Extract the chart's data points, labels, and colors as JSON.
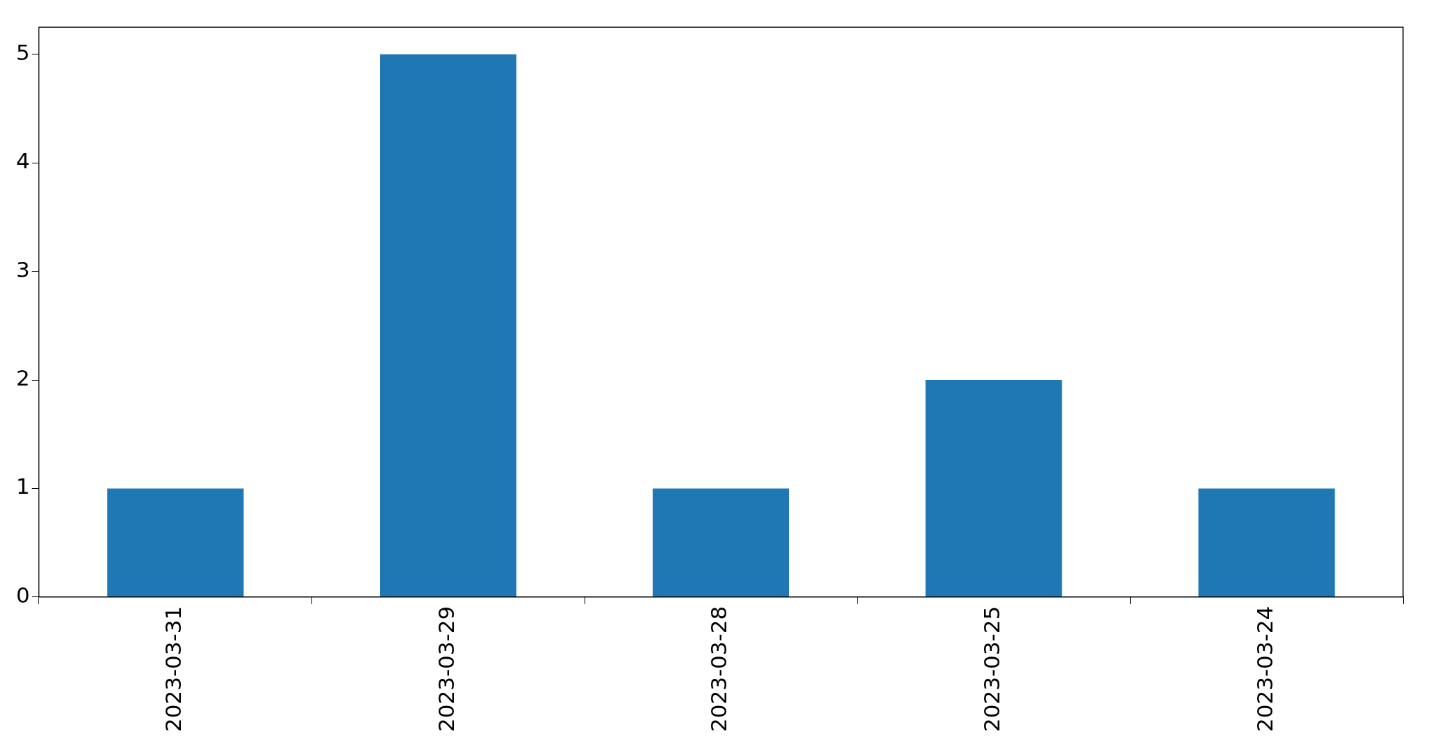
{
  "chart_data": {
    "type": "bar",
    "categories": [
      "2023-03-31",
      "2023-03-29",
      "2023-03-28",
      "2023-03-25",
      "2023-03-24"
    ],
    "values": [
      1,
      5,
      1,
      2,
      1
    ],
    "color": "#1f77b4",
    "ylim": [
      0,
      5.25
    ],
    "yticks": [
      0,
      1,
      2,
      3,
      4,
      5
    ],
    "grid": false,
    "legend": false
  }
}
